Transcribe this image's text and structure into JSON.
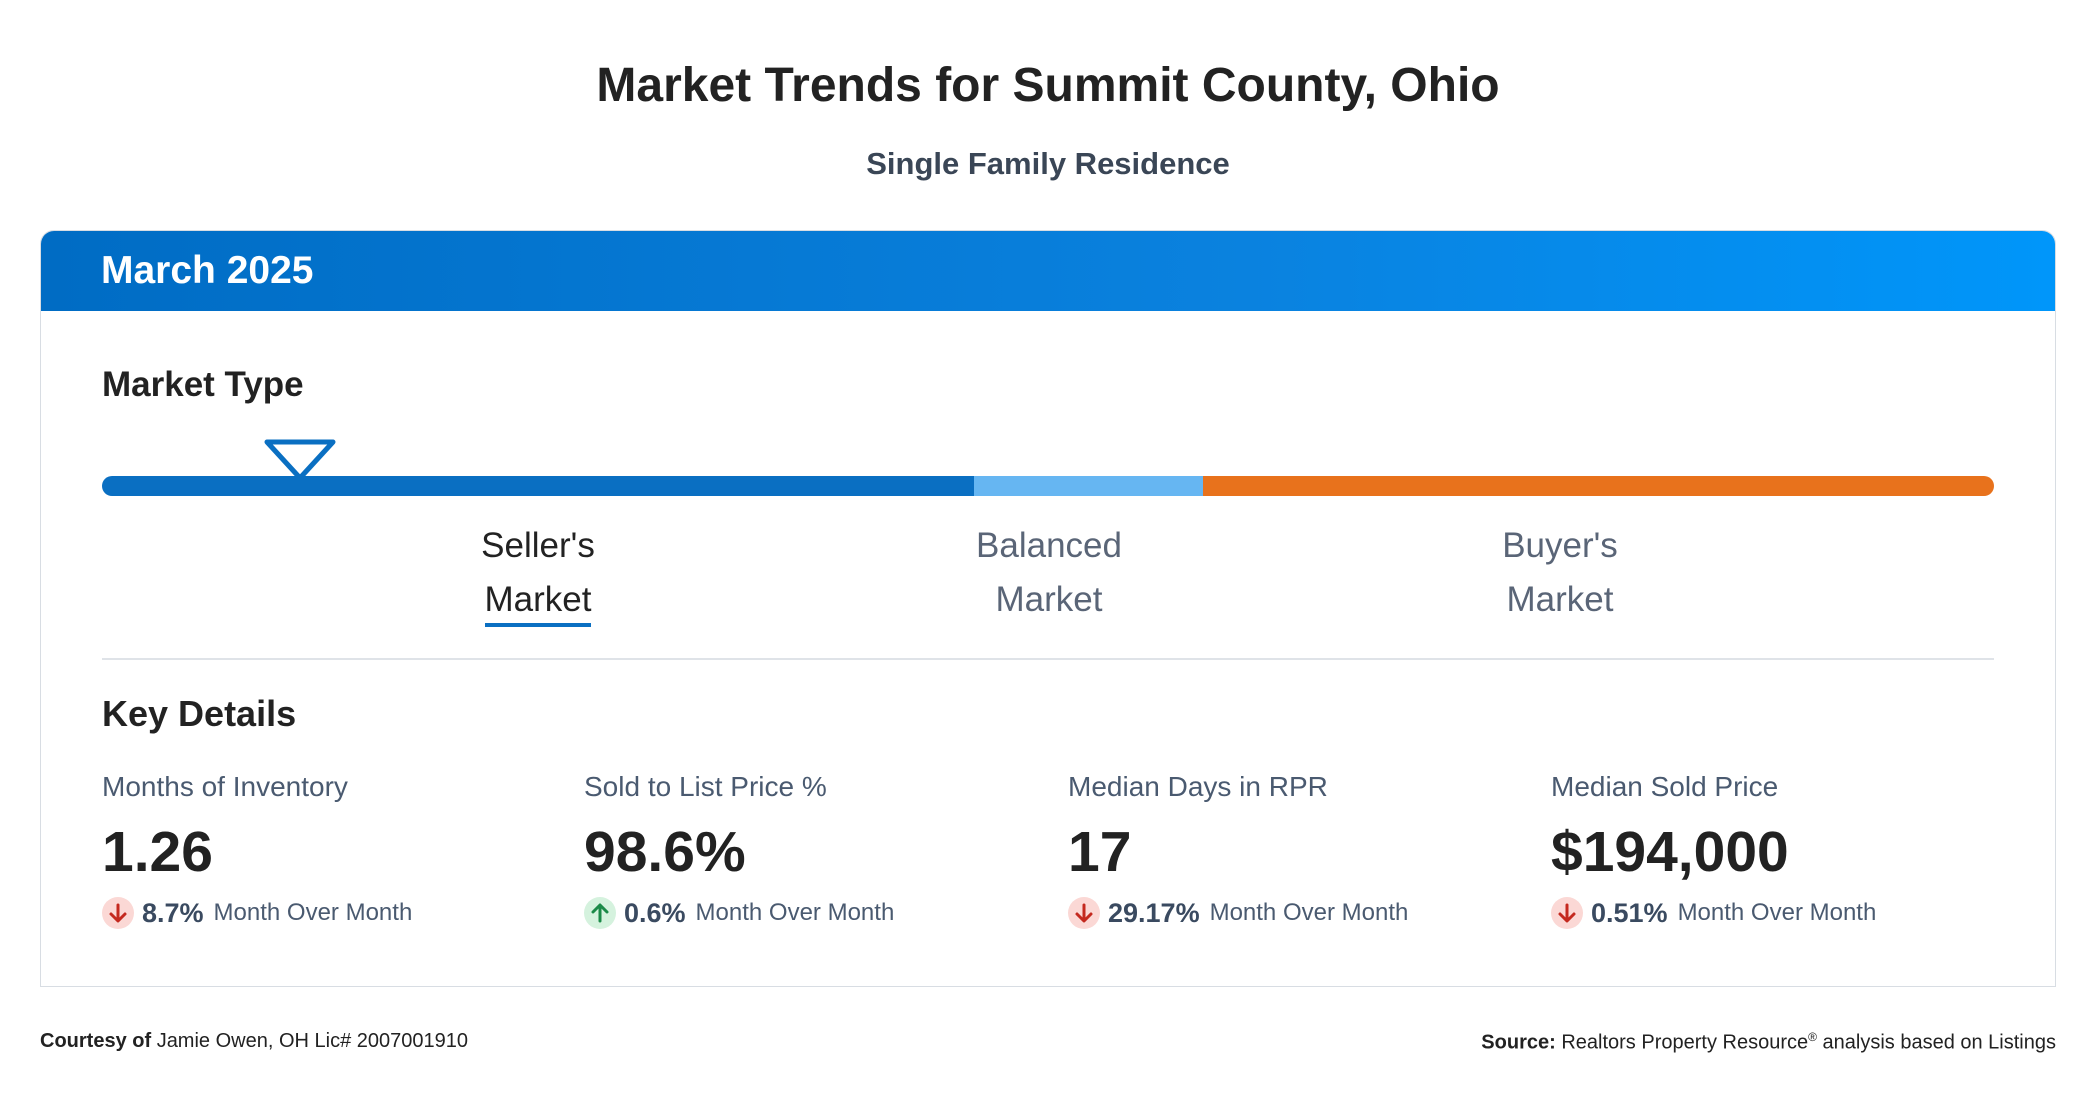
{
  "header": {
    "title": "Market Trends for Summit County, Ohio",
    "subtitle": "Single Family Residence"
  },
  "card": {
    "period": "March 2025"
  },
  "market_type": {
    "title": "Market Type",
    "active": 0,
    "segments": [
      {
        "lines": [
          "Seller's",
          "Market"
        ],
        "color": "#0a6fc2"
      },
      {
        "lines": [
          "Balanced",
          "Market"
        ],
        "color": "#66b6f2"
      },
      {
        "lines": [
          "Buyer's",
          "Market"
        ],
        "color": "#e8721c"
      }
    ]
  },
  "key_details": {
    "title": "Key Details",
    "metrics": [
      {
        "label": "Months of Inventory",
        "value": "1.26",
        "change": "8.7%",
        "change_label": "Month Over Month",
        "direction": "down"
      },
      {
        "label": "Sold to List Price %",
        "value": "98.6%",
        "change": "0.6%",
        "change_label": "Month Over Month",
        "direction": "up"
      },
      {
        "label": "Median Days in RPR",
        "value": "17",
        "change": "29.17%",
        "change_label": "Month Over Month",
        "direction": "down"
      },
      {
        "label": "Median Sold Price",
        "value": "$194,000",
        "change": "0.51%",
        "change_label": "Month Over Month",
        "direction": "down"
      }
    ]
  },
  "footer": {
    "courtesy_label": "Courtesy of",
    "courtesy_text": "Jamie Owen, OH Lic# 2007001910",
    "source_label": "Source:",
    "source_name": "Realtors Property Resource",
    "source_mark": "®",
    "source_rest": "analysis based on Listings"
  }
}
